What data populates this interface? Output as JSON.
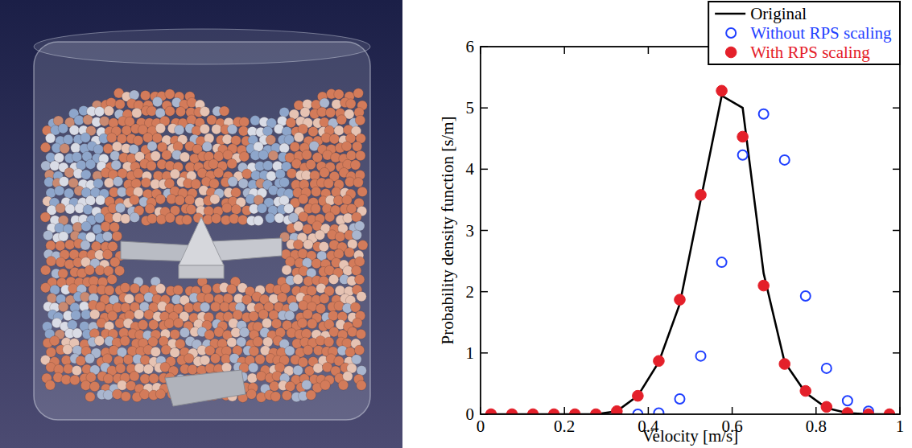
{
  "chart_data": {
    "type": "line",
    "x_label": "Velocity [m/s]",
    "y_label": "Probability density function [s/m]",
    "xlim": [
      0,
      1
    ],
    "ylim": [
      0,
      6
    ],
    "xticks": [
      0,
      0.2,
      0.4,
      0.6,
      0.8,
      1
    ],
    "yticks": [
      0,
      1,
      2,
      3,
      4,
      5,
      6
    ],
    "legend": "upper right",
    "grid": false,
    "series": [
      {
        "name": "Original",
        "type": "line",
        "color": "#000000",
        "line_style": "solid",
        "x": [
          0.025,
          0.075,
          0.125,
          0.175,
          0.225,
          0.275,
          0.325,
          0.375,
          0.425,
          0.475,
          0.525,
          0.575,
          0.625,
          0.675,
          0.725,
          0.775,
          0.825,
          0.875,
          0.925,
          0.975
        ],
        "values": [
          0,
          0,
          0,
          0,
          0,
          0,
          0.05,
          0.3,
          0.85,
          1.8,
          3.5,
          5.2,
          5.0,
          2.3,
          0.85,
          0.35,
          0.1,
          0.02,
          0,
          0
        ]
      },
      {
        "name": "Without RPS scaling",
        "type": "scatter",
        "color": "#1f3fff",
        "marker": "open_circle",
        "x": [
          0.325,
          0.375,
          0.425,
          0.475,
          0.525,
          0.575,
          0.625,
          0.675,
          0.725,
          0.775,
          0.825,
          0.875,
          0.925
        ],
        "values": [
          0,
          0,
          0.02,
          0.25,
          0.95,
          2.48,
          4.23,
          4.9,
          4.15,
          1.93,
          0.75,
          0.22,
          0.05
        ]
      },
      {
        "name": "With RPS scaling",
        "type": "scatter",
        "color": "#e4202a",
        "marker": "filled_circle",
        "x": [
          0.025,
          0.075,
          0.125,
          0.175,
          0.225,
          0.275,
          0.325,
          0.375,
          0.425,
          0.475,
          0.525,
          0.575,
          0.625,
          0.675,
          0.725,
          0.775,
          0.825,
          0.875,
          0.925,
          0.975
        ],
        "values": [
          0,
          0,
          0,
          0,
          0,
          0,
          0.05,
          0.3,
          0.87,
          1.87,
          3.58,
          5.28,
          4.53,
          2.1,
          0.82,
          0.38,
          0.12,
          0.02,
          0,
          0
        ]
      }
    ]
  }
}
